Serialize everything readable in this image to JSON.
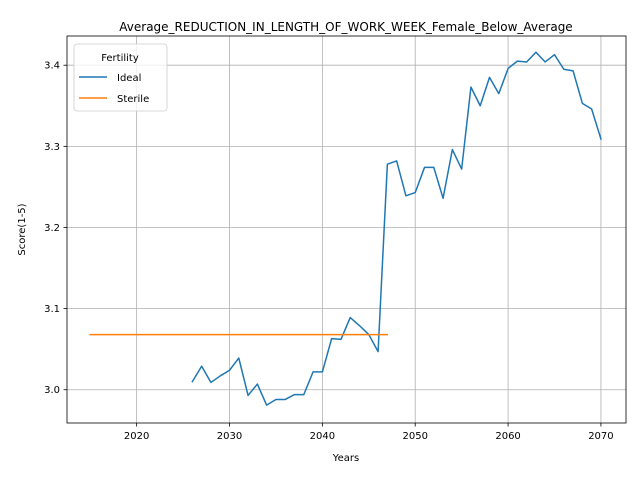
{
  "chart_data": {
    "type": "line",
    "title": "Average_REDUCTION_IN_LENGTH_OF_WORK_WEEK_Female_Below_Average",
    "xlabel": "Years",
    "ylabel": "Score(1-5)",
    "xlim": [
      2012.5,
      2072.7
    ],
    "ylim": [
      2.959,
      3.436
    ],
    "xticks": [
      2020,
      2030,
      2040,
      2050,
      2060,
      2070
    ],
    "yticks": [
      3.0,
      3.1,
      3.2,
      3.3,
      3.4
    ],
    "yticklabels": [
      "3.0",
      "3.1",
      "3.2",
      "3.3",
      "3.4"
    ],
    "grid": true,
    "legend": {
      "title": "Fertility",
      "placement": "top-left"
    },
    "series": [
      {
        "name": "Ideal",
        "color": "#1f77b4",
        "x": [
          2026,
          2027,
          2028,
          2029,
          2030,
          2031,
          2032,
          2033,
          2034,
          2035,
          2036,
          2037,
          2038,
          2039,
          2040,
          2041,
          2042,
          2043,
          2044,
          2045,
          2046,
          2047,
          2048,
          2049,
          2050,
          2051,
          2052,
          2053,
          2054,
          2055,
          2056,
          2057,
          2058,
          2059,
          2060,
          2061,
          2062,
          2063,
          2064,
          2065,
          2066,
          2067,
          2068,
          2069,
          2070
        ],
        "y": [
          3.01,
          3.029,
          3.009,
          3.017,
          3.024,
          3.039,
          2.993,
          3.007,
          2.981,
          2.988,
          2.988,
          2.994,
          2.994,
          3.022,
          3.022,
          3.063,
          3.062,
          3.089,
          3.079,
          3.068,
          3.047,
          3.278,
          3.282,
          3.239,
          3.243,
          3.274,
          3.274,
          3.236,
          3.296,
          3.272,
          3.373,
          3.35,
          3.385,
          3.365,
          3.396,
          3.405,
          3.404,
          3.416,
          3.404,
          3.413,
          3.395,
          3.393,
          3.353,
          3.346,
          3.309
        ]
      },
      {
        "name": "Sterile",
        "color": "#ff7f0e",
        "x": [
          2015,
          2047
        ],
        "y": [
          3.068,
          3.068
        ]
      }
    ]
  }
}
